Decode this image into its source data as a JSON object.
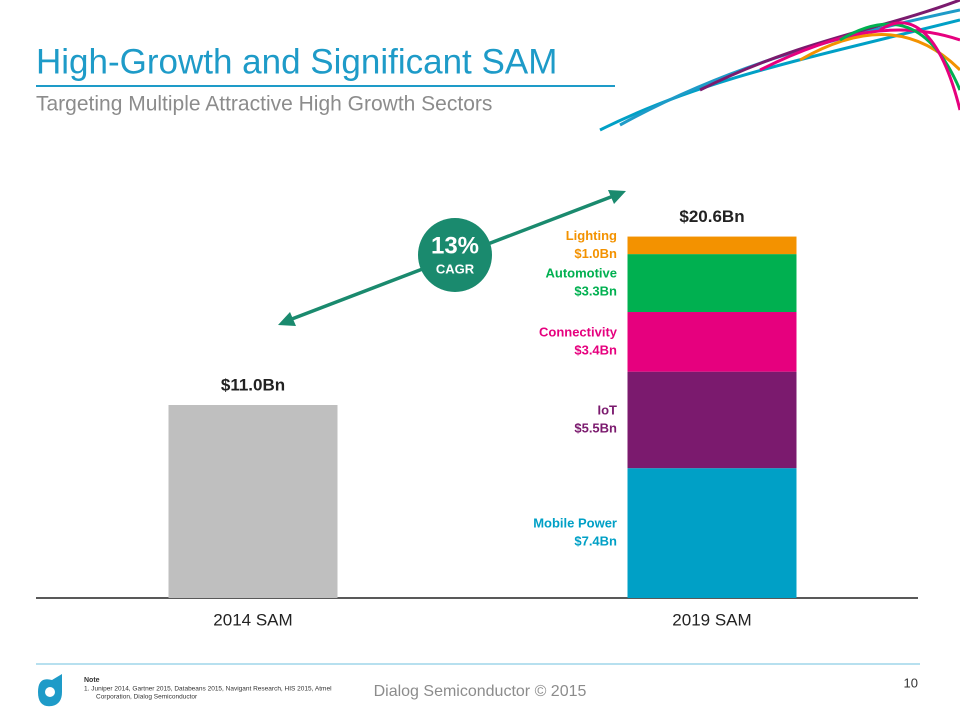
{
  "header": {
    "title": "High-Growth and Significant SAM",
    "subtitle": "Targeting Multiple Attractive High Growth Sectors"
  },
  "chart_data": {
    "type": "stacked_bar",
    "categories": [
      "2014 SAM",
      "2019 SAM"
    ],
    "ylim": [
      0,
      22
    ],
    "series": [
      {
        "color": "#bfbfbf",
        "values": [
          11.0,
          null
        ]
      },
      {
        "name": "Mobile Power",
        "color": "#00a0c6",
        "values": [
          null,
          7.4
        ],
        "value_labels": [
          null,
          "$7.4Bn"
        ]
      },
      {
        "name": "IoT",
        "color": "#7b1a6e",
        "values": [
          null,
          5.5
        ],
        "value_labels": [
          null,
          "$5.5Bn"
        ]
      },
      {
        "name": "Connectivity",
        "color": "#e6007e",
        "values": [
          null,
          3.4
        ],
        "value_labels": [
          null,
          "$3.4Bn"
        ]
      },
      {
        "name": "Automotive",
        "color": "#00b050",
        "values": [
          null,
          3.3
        ],
        "value_labels": [
          null,
          "$3.3Bn"
        ]
      },
      {
        "name": "Lighting",
        "color": "#f39200",
        "values": [
          null,
          1.0
        ],
        "value_labels": [
          null,
          "$1.0Bn"
        ]
      }
    ],
    "totals": {
      "values": [
        11.0,
        20.6
      ],
      "value_labels": [
        "$11.0Bn",
        "$20.6Bn"
      ]
    },
    "annotation": {
      "rate": "13%",
      "text": "CAGR"
    }
  },
  "footer": {
    "note_title": "Note",
    "note_items": [
      "1.   Juniper 2014, Gartner 2015, Databeans 2015, Navigant Research, HIS 2015, Atmel",
      "Corporation, Dialog Semiconductor"
    ],
    "company": "Dialog Semiconductor © 2015",
    "page": "10"
  }
}
